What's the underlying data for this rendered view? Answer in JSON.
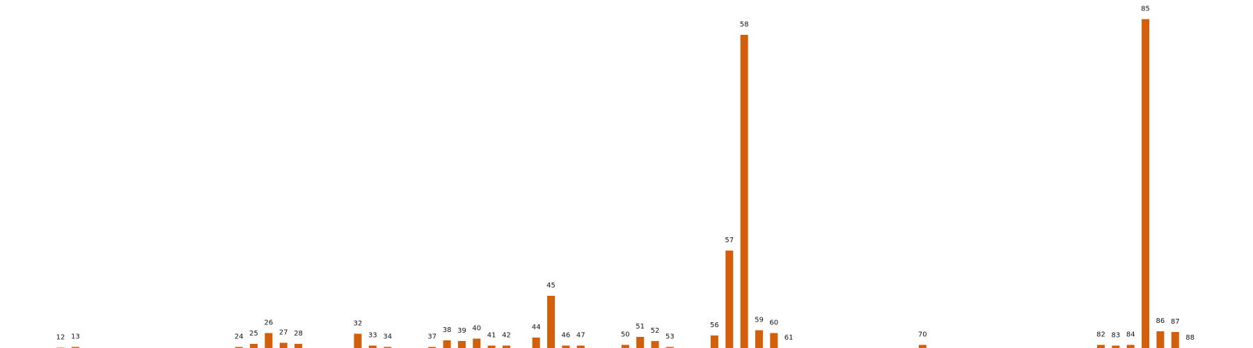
{
  "chart_data": {
    "type": "bar",
    "title": "",
    "xlabel": "",
    "ylabel": "",
    "grid": false,
    "legend": "none",
    "bar_color": "#d35f0a",
    "label_color": "#111111",
    "ylim": [
      0,
      100
    ],
    "categories": [
      "12",
      "13",
      "24",
      "25",
      "26",
      "27",
      "28",
      "32",
      "33",
      "34",
      "37",
      "38",
      "39",
      "40",
      "41",
      "42",
      "44",
      "45",
      "46",
      "47",
      "50",
      "51",
      "52",
      "53",
      "56",
      "57",
      "58",
      "59",
      "60",
      "61",
      "70",
      "82",
      "83",
      "84",
      "85",
      "86",
      "87",
      "88"
    ],
    "x": [
      12,
      13,
      24,
      25,
      26,
      27,
      28,
      32,
      33,
      34,
      37,
      38,
      39,
      40,
      41,
      42,
      44,
      45,
      46,
      47,
      50,
      51,
      52,
      53,
      56,
      57,
      58,
      59,
      60,
      61,
      70,
      82,
      83,
      84,
      85,
      86,
      87,
      88
    ],
    "values": [
      0.1,
      0.3,
      0.3,
      1.2,
      4.3,
      1.5,
      1.2,
      4.1,
      0.7,
      0.3,
      0.3,
      2.2,
      2.0,
      2.7,
      0.7,
      0.7,
      3.0,
      15.0,
      0.7,
      0.7,
      0.9,
      3.2,
      2.0,
      0.3,
      3.6,
      28.0,
      90.0,
      5.1,
      4.3,
      0.0,
      0.9,
      0.9,
      0.7,
      0.9,
      94.5,
      4.8,
      4.6,
      0.0
    ]
  }
}
